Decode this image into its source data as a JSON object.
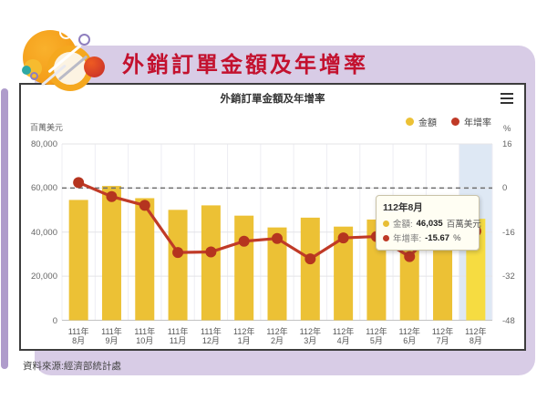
{
  "header": {
    "title": "外銷訂單金額及年增率"
  },
  "source": "資料來源:經濟部統計處",
  "chart": {
    "title": "外銷訂單金額及年增率",
    "menu_icon": "hamburger-icon"
  },
  "tooltip": {
    "title": "112年8月",
    "rows": [
      {
        "label": "金額:",
        "value": "46,035",
        "unit": "百萬美元",
        "color": "#E8BE34"
      },
      {
        "label": "年增率:",
        "value": "-15.67",
        "unit": "%",
        "color": "#BE3A26"
      }
    ]
  },
  "chart_data": {
    "type": "bar+line",
    "title": "外銷訂單金額及年增率",
    "categories_two_line": [
      [
        "111年",
        "8月"
      ],
      [
        "111年",
        "9月"
      ],
      [
        "111年",
        "10月"
      ],
      [
        "111年",
        "11月"
      ],
      [
        "111年",
        "12月"
      ],
      [
        "112年",
        "1月"
      ],
      [
        "112年",
        "2月"
      ],
      [
        "112年",
        "3月"
      ],
      [
        "112年",
        "4月"
      ],
      [
        "112年",
        "5月"
      ],
      [
        "112年",
        "6月"
      ],
      [
        "112年",
        "7月"
      ],
      [
        "112年",
        "8月"
      ]
    ],
    "series": [
      {
        "name": "金額",
        "type": "bar",
        "axis": "left",
        "color": "#ECC135",
        "highlight_color": "#F6DC41",
        "values": [
          54599,
          60929,
          55404,
          50099,
          52136,
          47469,
          42118,
          46556,
          42495,
          45705,
          44812,
          47291,
          46035
        ]
      },
      {
        "name": "年增率",
        "type": "line",
        "axis": "right",
        "color": "#C03A27",
        "dot_color": "#B5341F",
        "values": [
          2.0,
          -3.1,
          -6.3,
          -23.4,
          -23.2,
          -19.3,
          -18.3,
          -25.7,
          -18.1,
          -17.6,
          -24.9,
          -12.0,
          -15.67
        ]
      }
    ],
    "y_left": {
      "title": "百萬美元",
      "min": 0,
      "max": 80000,
      "tick_labels": [
        "80,000",
        "60,000",
        "40,000",
        "20,000",
        "0"
      ],
      "tick_values": [
        80000,
        60000,
        40000,
        20000,
        0
      ]
    },
    "y_right": {
      "title": "%",
      "min": -48,
      "max": 16,
      "tick_labels": [
        "16",
        "0",
        "-16",
        "-32",
        "-48"
      ],
      "tick_values": [
        16,
        0,
        -16,
        -32,
        -48
      ]
    },
    "zero_reference_line": "dashed",
    "highlighted_index": 12,
    "highlight_band_color": "#DEE8F4",
    "grid": {
      "horizontal": true,
      "vertical": true
    },
    "legend_position": "top-right"
  }
}
